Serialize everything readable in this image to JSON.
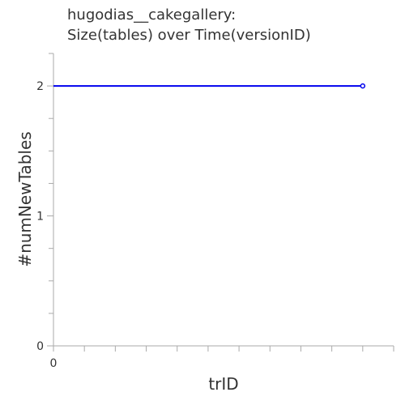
{
  "chart_data": {
    "type": "line",
    "title_line1": "hugodias__cakegallery:",
    "title_line2": "Size(tables) over Time(versionID)",
    "xlabel": "trID",
    "ylabel": "#numNewTables",
    "x_tick_labels": [
      "0"
    ],
    "y_tick_labels": [
      "0",
      "1",
      "2"
    ],
    "xlim": [
      0,
      11
    ],
    "ylim": [
      0,
      2.25
    ],
    "series": [
      {
        "color": "#0000ee",
        "x": [
          0,
          10
        ],
        "y": [
          2,
          2
        ]
      }
    ],
    "axis_color": "#aaaaaa",
    "grid": false
  }
}
